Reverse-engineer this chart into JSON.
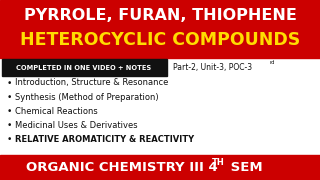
{
  "bg_color": "#ffffff",
  "top_banner_color": "#cc0000",
  "bottom_banner_color": "#cc0000",
  "top_text1": "PYRROLE, FURAN, THIOPHENE",
  "top_text2": "HETEROCYCLIC COMPOUNDS",
  "top_text1_color": "#ffffff",
  "top_text2_color": "#ffdd00",
  "completed_box_color": "#111111",
  "completed_text": "COMPLETED IN ONE VIDEO + NOTES",
  "completed_text_color": "#ffffff",
  "part_text": "Part-2, Unit-3, POC-3",
  "part_superscript": "rd",
  "part_text_color": "#111111",
  "bullet_points": [
    "Introduction, Structure & Resonance",
    "Synthesis (Method of Preparation)",
    "Chemical Reactions",
    "Medicinal Uses & Derivatives",
    "RELATIVE AROMATICITY & REACTIVITY"
  ],
  "bullet_bold": [
    false,
    false,
    false,
    false,
    true
  ],
  "bottom_text1": "ORGANIC CHEMISTRY III 4",
  "bottom_superscript": "TH",
  "bottom_text2": " SEM",
  "bottom_text_color": "#ffffff"
}
